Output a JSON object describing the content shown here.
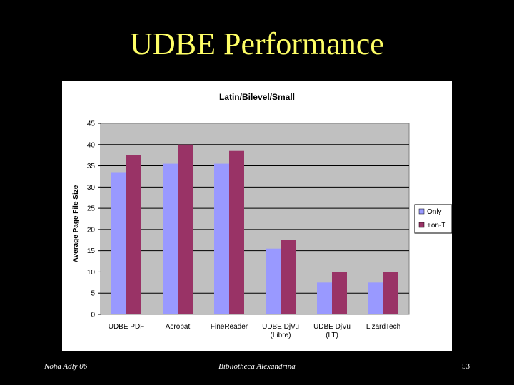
{
  "slide": {
    "title": "UDBE Performance",
    "footer_left": "Noha Adly 06",
    "footer_center": "Bibliotheca Alexandrina",
    "page_number": "53"
  },
  "colors": {
    "background": "#000000",
    "title": "#ffff66",
    "plot_area": "#c0c0c0",
    "series_1": "#9999ff",
    "series_2": "#993366"
  },
  "chart_data": {
    "type": "bar",
    "title": "Latin/Bilevel/Small",
    "ylabel": "Average Page File Size",
    "xlabel": "",
    "ylim": [
      0,
      45
    ],
    "yticks": [
      0,
      5,
      10,
      15,
      20,
      25,
      30,
      35,
      40,
      45
    ],
    "grid": true,
    "legend_position": "right",
    "categories": [
      [
        "UDBE PDF"
      ],
      [
        "Acrobat"
      ],
      [
        "FineReader"
      ],
      [
        "UDBE DjVu",
        "(Libre)"
      ],
      [
        "UDBE DjVu",
        "(LT)"
      ],
      [
        "LizardTech"
      ]
    ],
    "series": [
      {
        "name": "Only",
        "color": "#9999ff",
        "values": [
          33.5,
          35.5,
          35.5,
          15.5,
          7.5,
          7.5
        ]
      },
      {
        "name": "+on-T",
        "color": "#993366",
        "values": [
          37.5,
          40,
          38.5,
          17.5,
          10,
          10
        ]
      }
    ]
  }
}
